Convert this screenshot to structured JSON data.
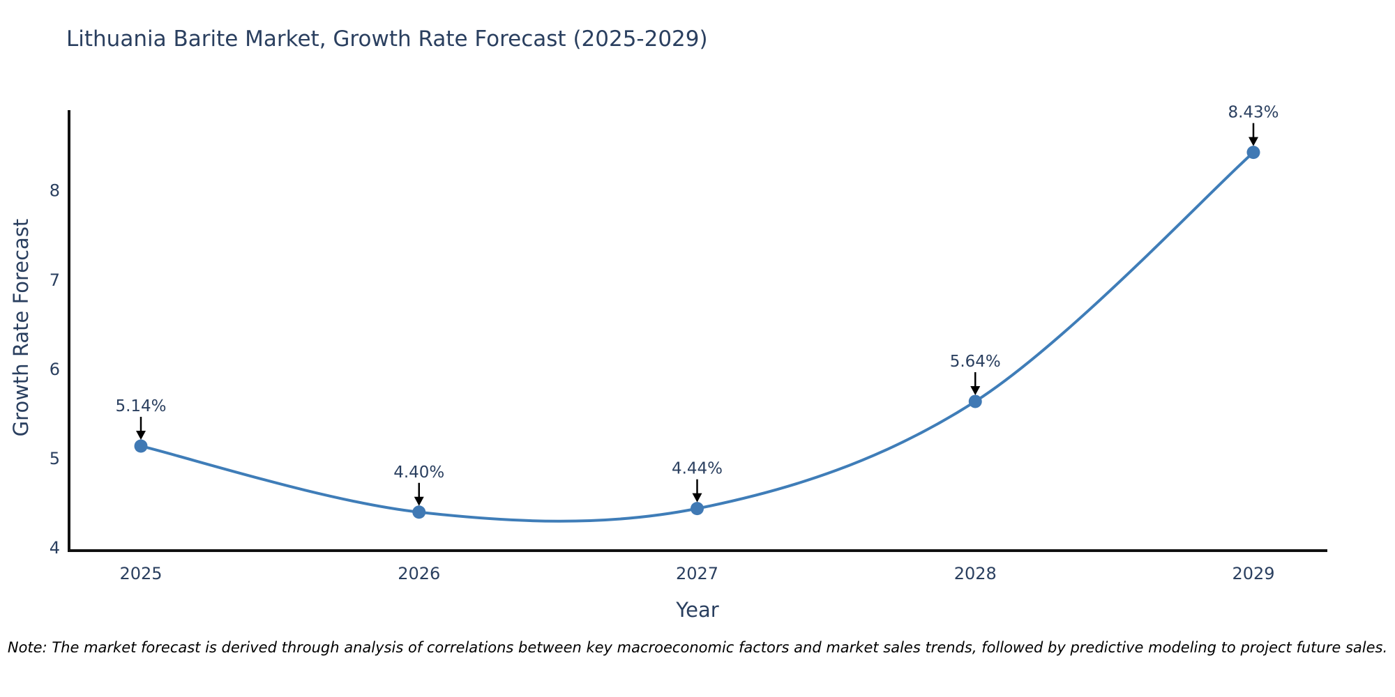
{
  "title": "Lithuania Barite Market, Growth Rate Forecast (2025-2029)",
  "note": "Note: The market forecast is derived through analysis of correlations between key macroeconomic factors and market sales trends, followed by predictive modeling to project future sales.",
  "chart_data": {
    "type": "line",
    "line_shape": "spline",
    "title": "Lithuania Barite Market, Growth Rate Forecast (2025-2029)",
    "xlabel": "Year",
    "ylabel": "Growth Rate Forecast",
    "categories": [
      "2025",
      "2026",
      "2027",
      "2028",
      "2029"
    ],
    "values": [
      5.14,
      4.4,
      4.44,
      5.64,
      8.43
    ],
    "point_labels": [
      "5.14%",
      "4.40%",
      "4.44%",
      "5.64%",
      "8.43%"
    ],
    "yticks": [
      4,
      5,
      6,
      7,
      8
    ],
    "ylim": [
      3.97,
      8.92
    ],
    "grid": false,
    "legend_position": "none",
    "colors": {
      "line": "#3f7db8",
      "marker": "#4079b4",
      "text": "#2a3f5f",
      "axis": "#111111",
      "annotation": "#000000",
      "background": "#ffffff"
    }
  }
}
